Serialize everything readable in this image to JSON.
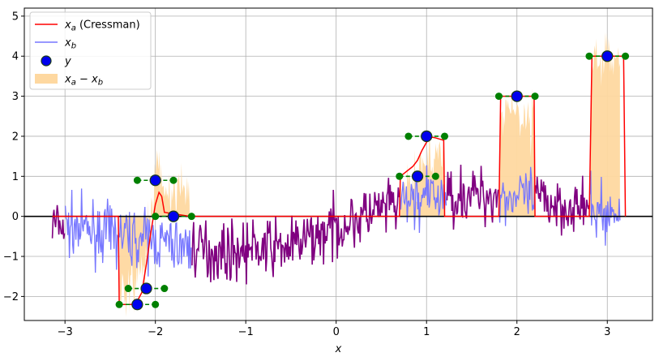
{
  "chart_data": {
    "type": "line",
    "xlabel": "x",
    "ylabel": "",
    "xlim": [
      -3.45,
      3.5
    ],
    "ylim": [
      -2.6,
      5.2
    ],
    "grid": true,
    "legend_placement": "top-left",
    "x_ticks": [
      {
        "value": -3,
        "label": "−3"
      },
      {
        "value": -2,
        "label": "−2"
      },
      {
        "value": -1,
        "label": "−1"
      },
      {
        "value": 0,
        "label": "0"
      },
      {
        "value": 1,
        "label": "1"
      },
      {
        "value": 2,
        "label": "2"
      },
      {
        "value": 3,
        "label": "3"
      }
    ],
    "y_ticks": [
      {
        "value": -2,
        "label": "−2"
      },
      {
        "value": -1,
        "label": "−1"
      },
      {
        "value": 0,
        "label": "0"
      },
      {
        "value": 1,
        "label": "1"
      },
      {
        "value": 2,
        "label": "2"
      },
      {
        "value": 3,
        "label": "3"
      },
      {
        "value": 4,
        "label": "4"
      },
      {
        "value": 5,
        "label": "5"
      }
    ],
    "colors": {
      "xa": "#ff0000",
      "xb": "#7777ff",
      "purple": "#800080",
      "fill": "#fed8a0",
      "obs_face": "#0000ee",
      "obs_edge": "#1a3a1a",
      "window": "#008000",
      "zero": "#000000",
      "grid": "#b0b0b0"
    },
    "legend": [
      {
        "key": "xa",
        "label_base": "x",
        "label_sub": "a",
        "label_tail": " (Cressman)"
      },
      {
        "key": "xb",
        "label_base": "x",
        "label_sub": "b",
        "label_tail": ""
      },
      {
        "key": "obs",
        "label_base": "y",
        "label_sub": "",
        "label_tail": ""
      },
      {
        "key": "fill",
        "label_base": "x",
        "label_sub": "a",
        "label_mid": " − x",
        "label_sub2": "b"
      }
    ],
    "observations": [
      {
        "x": -2.2,
        "y": -2.2,
        "radius": 0.2
      },
      {
        "x": -2.1,
        "y": -1.8,
        "radius": 0.2
      },
      {
        "x": -2.0,
        "y": 0.9,
        "radius": 0.2
      },
      {
        "x": -1.8,
        "y": 0.0,
        "radius": 0.2
      },
      {
        "x": 0.9,
        "y": 1.0,
        "radius": 0.2
      },
      {
        "x": 1.0,
        "y": 2.0,
        "radius": 0.2
      },
      {
        "x": 2.0,
        "y": 3.0,
        "radius": 0.2
      },
      {
        "x": 3.0,
        "y": 4.0,
        "radius": 0.2
      }
    ],
    "purple_segments": [
      [
        -3.14,
        -3.0
      ],
      [
        -1.6,
        0.7
      ],
      [
        1.22,
        1.8
      ],
      [
        2.2,
        2.8
      ]
    ],
    "analysis_xa": [
      [
        -3.14,
        0.0
      ],
      [
        -2.41,
        0.0
      ],
      [
        -2.4,
        -2.2
      ],
      [
        -2.22,
        -2.2
      ],
      [
        -2.15,
        -1.9
      ],
      [
        -2.1,
        -1.2
      ],
      [
        -2.05,
        -0.4
      ],
      [
        -2.0,
        0.3
      ],
      [
        -1.96,
        0.6
      ],
      [
        -1.93,
        0.5
      ],
      [
        -1.9,
        0.1
      ],
      [
        -1.62,
        0.0
      ],
      [
        0.7,
        0.0
      ],
      [
        0.71,
        1.0
      ],
      [
        0.85,
        1.25
      ],
      [
        0.9,
        1.4
      ],
      [
        0.95,
        1.65
      ],
      [
        1.0,
        1.85
      ],
      [
        1.05,
        1.98
      ],
      [
        1.1,
        1.96
      ],
      [
        1.19,
        1.9
      ],
      [
        1.2,
        0.0
      ],
      [
        1.8,
        0.0
      ],
      [
        1.82,
        3.0
      ],
      [
        2.19,
        3.0
      ],
      [
        2.2,
        0.0
      ],
      [
        2.8,
        0.0
      ],
      [
        2.83,
        4.0
      ],
      [
        3.18,
        4.0
      ],
      [
        3.2,
        0.0
      ]
    ],
    "noise": {
      "n": 700,
      "seed": 7,
      "trend": [
        [
          -3.14,
          -0.2
        ],
        [
          -2.2,
          -0.55
        ],
        [
          -1.3,
          -0.9
        ],
        [
          -0.5,
          -0.75
        ],
        [
          0.3,
          0.0
        ],
        [
          0.9,
          0.45
        ],
        [
          1.5,
          0.55
        ],
        [
          2.2,
          0.45
        ],
        [
          3.14,
          0.0
        ]
      ],
      "amp": 0.5,
      "xb_offset": 0.7
    }
  }
}
